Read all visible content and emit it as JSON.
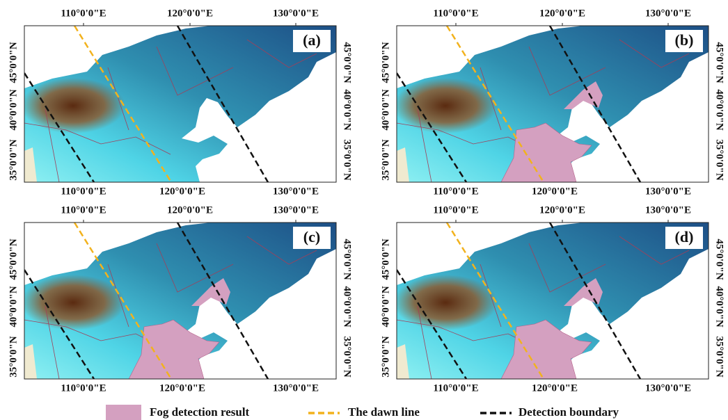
{
  "panels": [
    {
      "label": "(a)"
    },
    {
      "label": "(b)"
    },
    {
      "label": "(c)"
    },
    {
      "label": "(d)"
    }
  ],
  "axes": {
    "longitude_labels": [
      "110°0'0\"E",
      "120°0'0\"E",
      "130°0'0\"E"
    ],
    "latitude_labels": [
      "35°0'0\"N",
      "40°0'0\"N",
      "45°0'0\"N"
    ]
  },
  "legend": [
    {
      "label": "Fog detection result"
    },
    {
      "label": "The dawn line"
    },
    {
      "label": "Detection boundary"
    }
  ]
}
